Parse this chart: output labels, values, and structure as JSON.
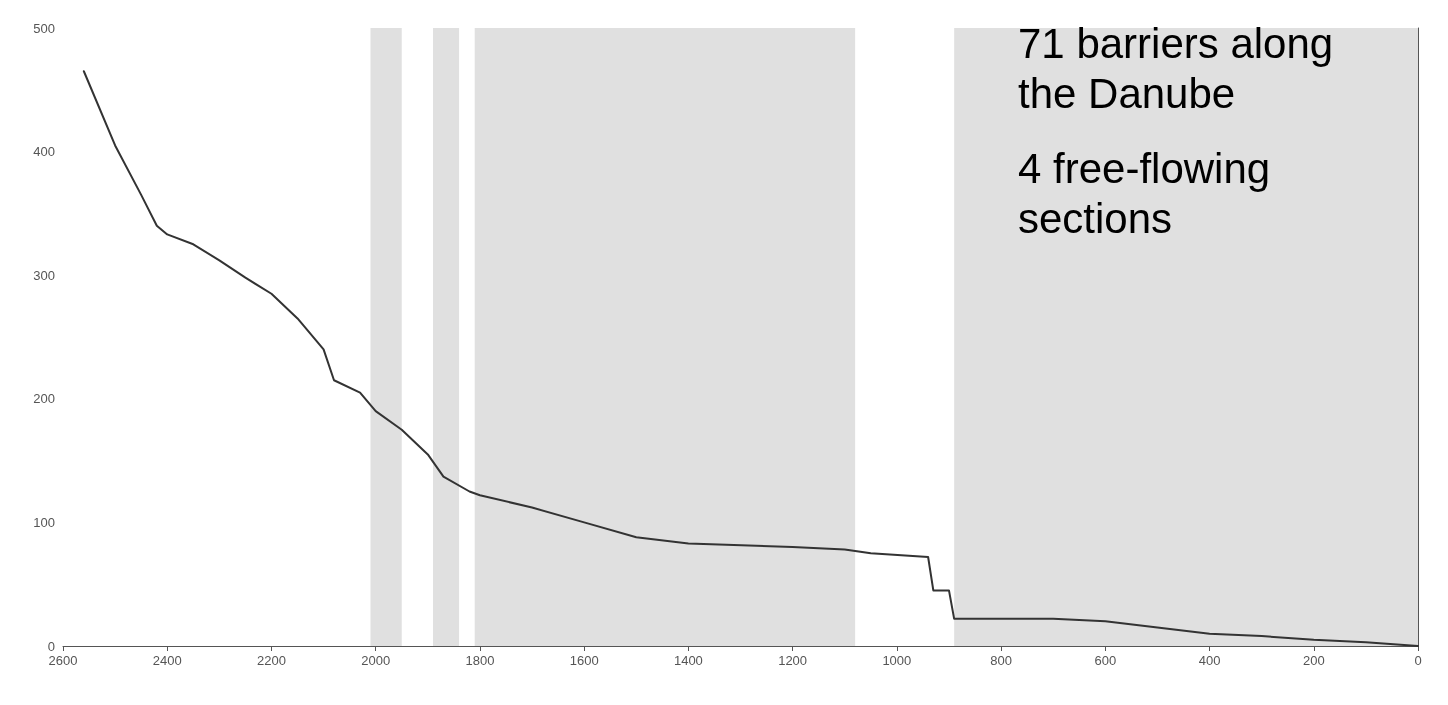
{
  "chart_data": {
    "type": "line",
    "annotations": [
      "71 barriers along the Danube",
      "4 free-flowing sections"
    ],
    "x": [
      2560,
      2500,
      2450,
      2420,
      2400,
      2350,
      2300,
      2250,
      2200,
      2150,
      2100,
      2080,
      2030,
      2000,
      1950,
      1900,
      1870,
      1820,
      1800,
      1700,
      1600,
      1500,
      1400,
      1200,
      1100,
      1050,
      940,
      930,
      900,
      890,
      700,
      600,
      500,
      400,
      300,
      200,
      100,
      0
    ],
    "series": [
      {
        "color": "#333333",
        "values": [
          465,
          405,
          365,
          340,
          333,
          325,
          312,
          298,
          285,
          265,
          240,
          215,
          205,
          190,
          175,
          155,
          137,
          125,
          122,
          112,
          100,
          88,
          83,
          80,
          78,
          75,
          72,
          45,
          45,
          22,
          22,
          20,
          15,
          10,
          8,
          5,
          3,
          0
        ]
      }
    ],
    "bands": [
      {
        "axis": "x",
        "from": 2010,
        "to": 1950,
        "color": "#e0e0e0"
      },
      {
        "axis": "x",
        "from": 1890,
        "to": 1840,
        "color": "#e0e0e0"
      },
      {
        "axis": "x",
        "from": 1810,
        "to": 1080,
        "color": "#e0e0e0"
      },
      {
        "axis": "x",
        "from": 890,
        "to": 0,
        "color": "#e0e0e0"
      }
    ],
    "xlim": [
      2600,
      0
    ],
    "xticks": [
      2600,
      2400,
      2200,
      2000,
      1800,
      1600,
      1400,
      1200,
      1000,
      800,
      600,
      400,
      200,
      0
    ],
    "ylim": [
      0,
      500
    ],
    "yticks": [
      0,
      100,
      200,
      300,
      400,
      500
    ],
    "grid": false,
    "marker": "none",
    "line_style": "solid"
  }
}
